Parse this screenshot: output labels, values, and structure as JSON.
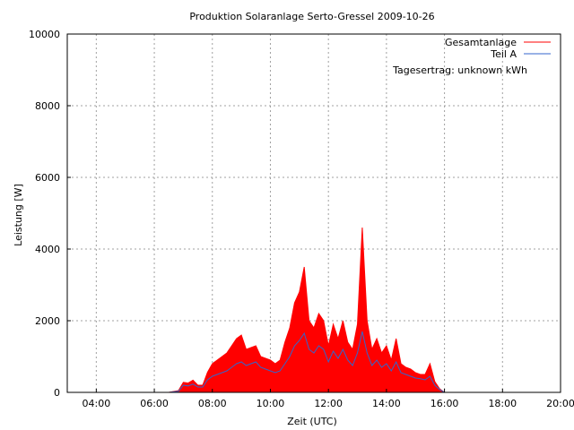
{
  "chart_data": {
    "type": "area",
    "title": "Produktion Solaranlage Serto-Gressel 2009-10-26",
    "xlabel": "Zeit (UTC)",
    "ylabel": "Leistung [W]",
    "xlim": [
      "03:00",
      "20:00"
    ],
    "ylim": [
      0,
      10000
    ],
    "x_ticks": [
      "04:00",
      "06:00",
      "08:00",
      "10:00",
      "12:00",
      "14:00",
      "16:00",
      "18:00",
      "20:00"
    ],
    "y_ticks": [
      "0",
      "2000",
      "4000",
      "6000",
      "8000",
      "10000"
    ],
    "grid": true,
    "legend_position": "top-right",
    "annotation": "Tagesertrag: unknown kWh",
    "x": [
      "06:30",
      "06:50",
      "07:00",
      "07:10",
      "07:20",
      "07:30",
      "07:40",
      "07:50",
      "08:00",
      "08:10",
      "08:20",
      "08:30",
      "08:40",
      "08:50",
      "09:00",
      "09:10",
      "09:20",
      "09:30",
      "09:40",
      "09:50",
      "10:00",
      "10:10",
      "10:20",
      "10:30",
      "10:40",
      "10:50",
      "11:00",
      "11:10",
      "11:20",
      "11:30",
      "11:40",
      "11:50",
      "12:00",
      "12:10",
      "12:20",
      "12:30",
      "12:40",
      "12:50",
      "13:00",
      "13:10",
      "13:20",
      "13:30",
      "13:40",
      "13:50",
      "14:00",
      "14:10",
      "14:20",
      "14:30",
      "14:40",
      "14:50",
      "15:00",
      "15:10",
      "15:20",
      "15:30",
      "15:40",
      "15:50",
      "16:00"
    ],
    "series": [
      {
        "name": "Gesamtanlage",
        "color": "#ff0000",
        "values": [
          0,
          50,
          280,
          260,
          340,
          200,
          200,
          560,
          800,
          900,
          1000,
          1100,
          1300,
          1500,
          1600,
          1200,
          1250,
          1300,
          1000,
          950,
          900,
          800,
          900,
          1400,
          1800,
          2500,
          2800,
          3500,
          2000,
          1800,
          2200,
          2000,
          1300,
          1900,
          1500,
          2000,
          1400,
          1200,
          1900,
          4600,
          2000,
          1200,
          1500,
          1100,
          1300,
          900,
          1500,
          800,
          700,
          650,
          550,
          500,
          500,
          800,
          300,
          100,
          0
        ]
      },
      {
        "name": "Teil A",
        "color": "#3366cc",
        "values": [
          0,
          30,
          200,
          180,
          230,
          150,
          150,
          350,
          450,
          500,
          550,
          600,
          700,
          800,
          850,
          750,
          800,
          850,
          700,
          650,
          600,
          550,
          600,
          800,
          1000,
          1300,
          1450,
          1650,
          1200,
          1100,
          1300,
          1200,
          850,
          1150,
          950,
          1200,
          900,
          750,
          1100,
          1700,
          1100,
          750,
          900,
          700,
          800,
          600,
          850,
          550,
          500,
          450,
          400,
          380,
          350,
          450,
          200,
          80,
          0
        ]
      }
    ]
  }
}
